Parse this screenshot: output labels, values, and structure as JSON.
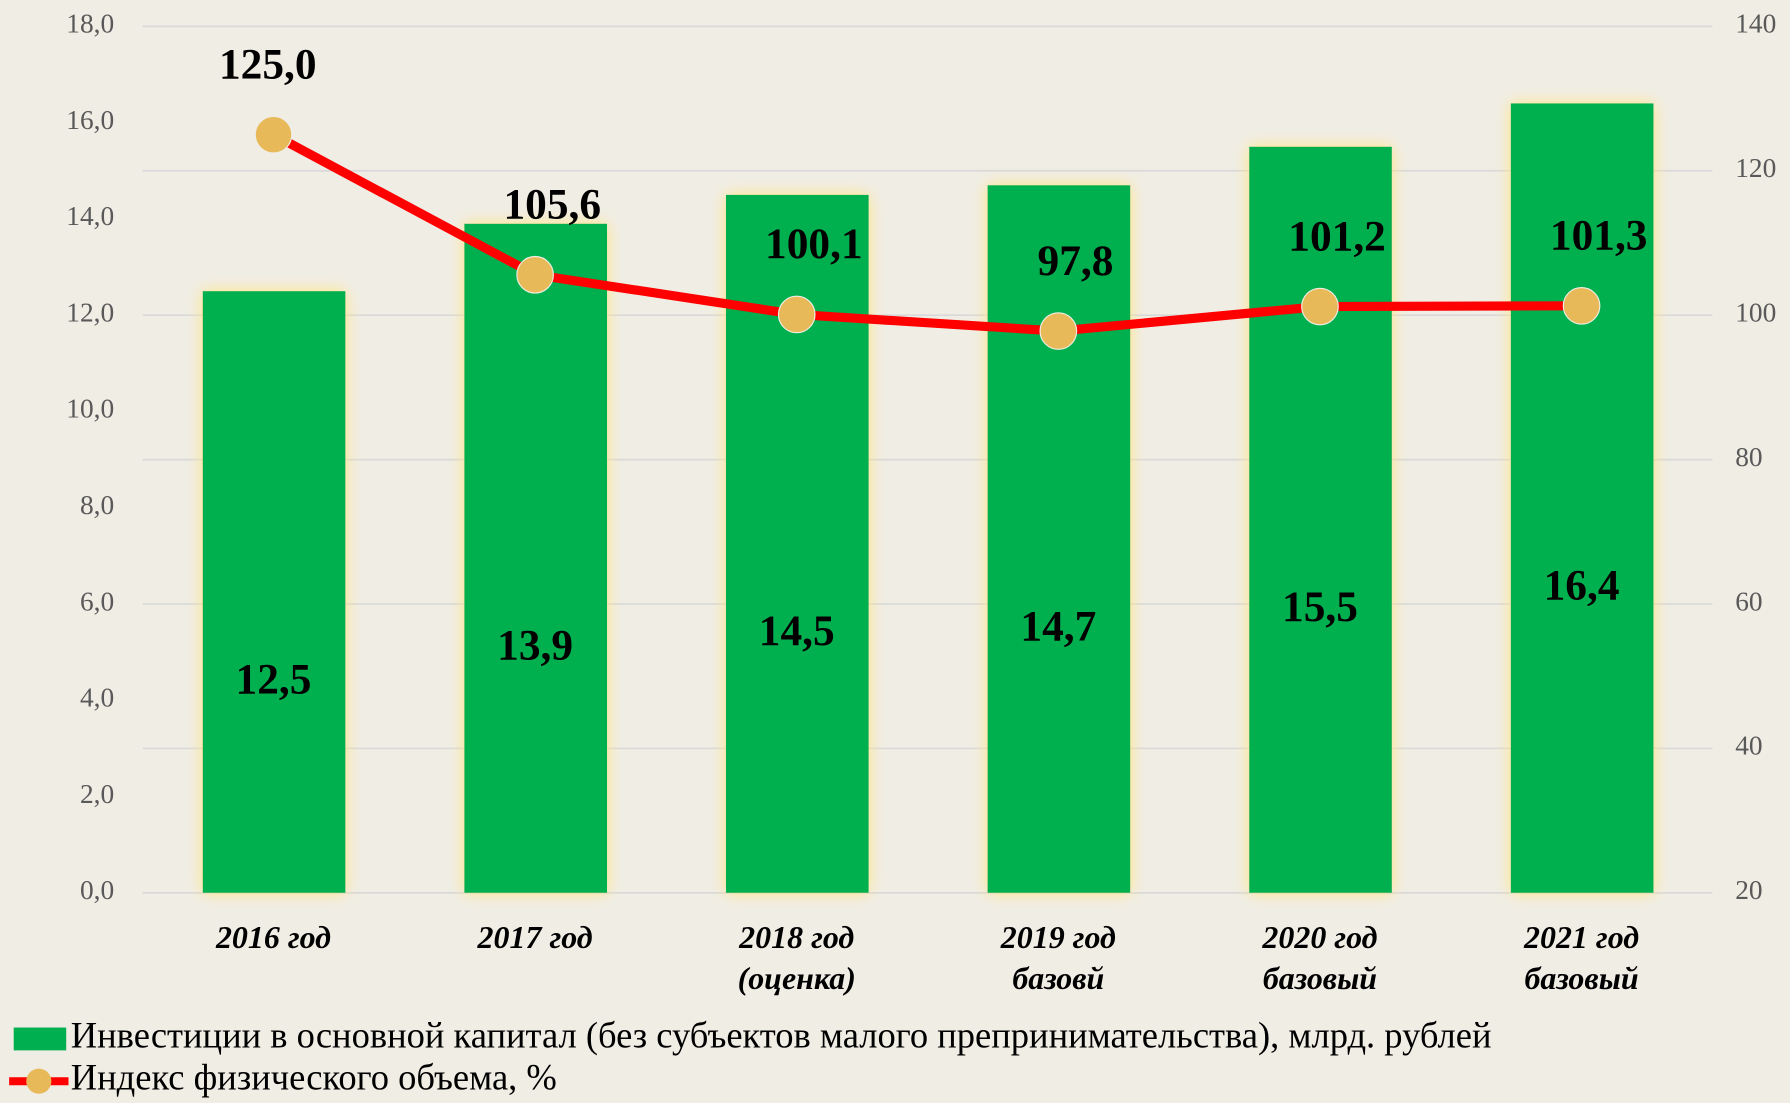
{
  "chart_data": {
    "type": "bar",
    "categories": [
      [
        "2016 год"
      ],
      [
        "2017 год"
      ],
      [
        "2018 год",
        "(оценка)"
      ],
      [
        "2019 год",
        "базовй"
      ],
      [
        "2020 год",
        "базовый"
      ],
      [
        "2021 год",
        "базовый"
      ]
    ],
    "series": [
      {
        "name": "Инвестиции в основной капитал (без субъектов малого препринимательства), млрд. рублей",
        "type": "bar",
        "color": "#00b050",
        "values": [
          12.5,
          13.9,
          14.5,
          14.7,
          15.5,
          16.4
        ],
        "value_labels": [
          "12,5",
          "13,9",
          "14,5",
          "14,7",
          "15,5",
          "16,4"
        ]
      },
      {
        "name": "Индекс физического объема, %",
        "type": "line",
        "axis": "y2",
        "color": "#ff0000",
        "marker_color": "#e8b959",
        "values": [
          125.0,
          105.6,
          100.1,
          97.8,
          101.2,
          101.3
        ],
        "value_labels": [
          "125,0",
          "105,6",
          "100,1",
          "97,8",
          "101,2",
          "101,3"
        ]
      }
    ],
    "ylim": [
      0,
      18
    ],
    "yticks": [
      {
        "value": 0,
        "label": "0,0"
      },
      {
        "value": 2,
        "label": "2,0"
      },
      {
        "value": 4,
        "label": "4,0"
      },
      {
        "value": 6,
        "label": "6,0"
      },
      {
        "value": 8,
        "label": "8,0"
      },
      {
        "value": 10,
        "label": "10,0"
      },
      {
        "value": 12,
        "label": "12,0"
      },
      {
        "value": 14,
        "label": "14,0"
      },
      {
        "value": 16,
        "label": "16,0"
      },
      {
        "value": 18,
        "label": "18,0"
      }
    ],
    "y2lim": [
      20,
      140
    ],
    "y2ticks": [
      20,
      40,
      60,
      80,
      100,
      120,
      140
    ],
    "grid": true,
    "legend": "bottom"
  }
}
